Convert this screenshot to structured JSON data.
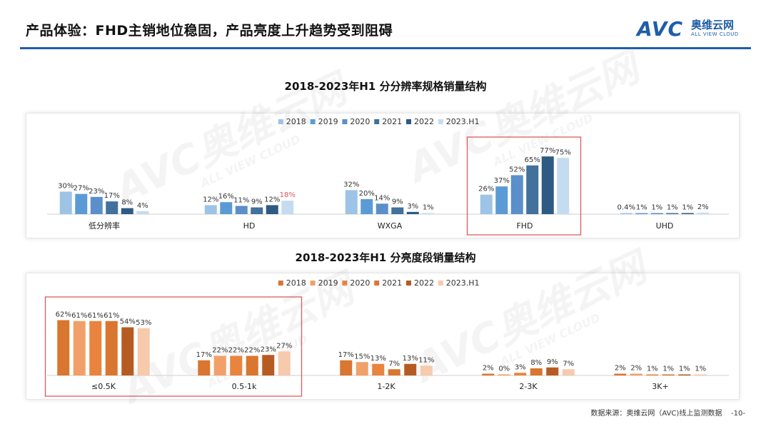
{
  "header": {
    "title": "产品体验：FHD主销地位稳固，产品亮度上升趋势受到阻碍",
    "brand_mark": "AVC",
    "brand_cn": "奥维云网",
    "brand_en": "ALL VIEW CLOUD"
  },
  "watermark": {
    "mark": "AVC",
    "cn": "奥维云网",
    "en": "ALL VIEW CLOUD"
  },
  "footer": {
    "source": "数据来源：奥维云网（AVC)线上监测数据",
    "page": "-10-"
  },
  "chart_data": [
    {
      "type": "bar",
      "title": "2018-2023年H1 分分辨率规格销量结构",
      "categories": [
        "低分辨率",
        "HD",
        "WXGA",
        "FHD",
        "UHD"
      ],
      "series": [
        {
          "name": "2018",
          "color": "#9dc3e6",
          "values": [
            30,
            12,
            32,
            26,
            0.4
          ],
          "labels": [
            "30%",
            "12%",
            "32%",
            "26%",
            "0.4%"
          ]
        },
        {
          "name": "2019",
          "color": "#5b9bd5",
          "values": [
            27,
            16,
            20,
            37,
            1
          ],
          "labels": [
            "27%",
            "16%",
            "20%",
            "37%",
            "1%"
          ]
        },
        {
          "name": "2020",
          "color": "#5b8fc9",
          "values": [
            23,
            11,
            14,
            52,
            1
          ],
          "labels": [
            "23%",
            "11%",
            "14%",
            "52%",
            "1%"
          ]
        },
        {
          "name": "2021",
          "color": "#41719c",
          "values": [
            17,
            9,
            9,
            65,
            1
          ],
          "labels": [
            "17%",
            "9%",
            "9%",
            "65%",
            "1%"
          ]
        },
        {
          "name": "2022",
          "color": "#2e5a84",
          "values": [
            8,
            12,
            3,
            77,
            1
          ],
          "labels": [
            "8%",
            "12%",
            "3%",
            "77%",
            "1%"
          ]
        },
        {
          "name": "2023.H1",
          "color": "#c5dbf0",
          "values": [
            4,
            18,
            1,
            75,
            2
          ],
          "labels": [
            "4%",
            "18%",
            "1%",
            "75%",
            "2%"
          ]
        }
      ],
      "highlight_label": {
        "series": "2023.H1",
        "category": "HD",
        "color": "#e05a5a"
      },
      "highlight_box": {
        "categories": [
          "FHD"
        ],
        "color": "#e05a5a"
      },
      "legend": "top-center",
      "ylim": [
        0,
        100
      ],
      "grid": false
    },
    {
      "type": "bar",
      "title": "2018-2023年H1 分亮度段销量结构",
      "categories": [
        "≤0.5K",
        "0.5-1k",
        "1-2K",
        "2-3K",
        "3K+"
      ],
      "series": [
        {
          "name": "2018",
          "color": "#d9762f",
          "values": [
            62,
            17,
            17,
            2,
            2
          ],
          "labels": [
            "62%",
            "17%",
            "17%",
            "2%",
            "2%"
          ]
        },
        {
          "name": "2019",
          "color": "#f0a068",
          "values": [
            61,
            22,
            15,
            0,
            2
          ],
          "labels": [
            "61%",
            "22%",
            "15%",
            "0%",
            "2%"
          ]
        },
        {
          "name": "2020",
          "color": "#e9843f",
          "values": [
            61,
            22,
            13,
            3,
            1
          ],
          "labels": [
            "61%",
            "22%",
            "13%",
            "3%",
            "1%"
          ]
        },
        {
          "name": "2021",
          "color": "#d9762f",
          "values": [
            61,
            22,
            7,
            8,
            1
          ],
          "labels": [
            "61%",
            "22%",
            "7%",
            "8%",
            "1%"
          ]
        },
        {
          "name": "2022",
          "color": "#b65c22",
          "values": [
            54,
            23,
            13,
            9,
            1
          ],
          "labels": [
            "54%",
            "23%",
            "13%",
            "9%",
            "1%"
          ]
        },
        {
          "name": "2023.H1",
          "color": "#f7c9ad",
          "values": [
            53,
            27,
            11,
            7,
            1
          ],
          "labels": [
            "53%",
            "27%",
            "11%",
            "7%",
            "1%"
          ]
        }
      ],
      "highlight_box": {
        "categories": [
          "≤0.5K",
          "0.5-1k"
        ],
        "color": "#e05a5a"
      },
      "legend": "top-center",
      "ylim": [
        0,
        100
      ],
      "grid": false
    }
  ]
}
